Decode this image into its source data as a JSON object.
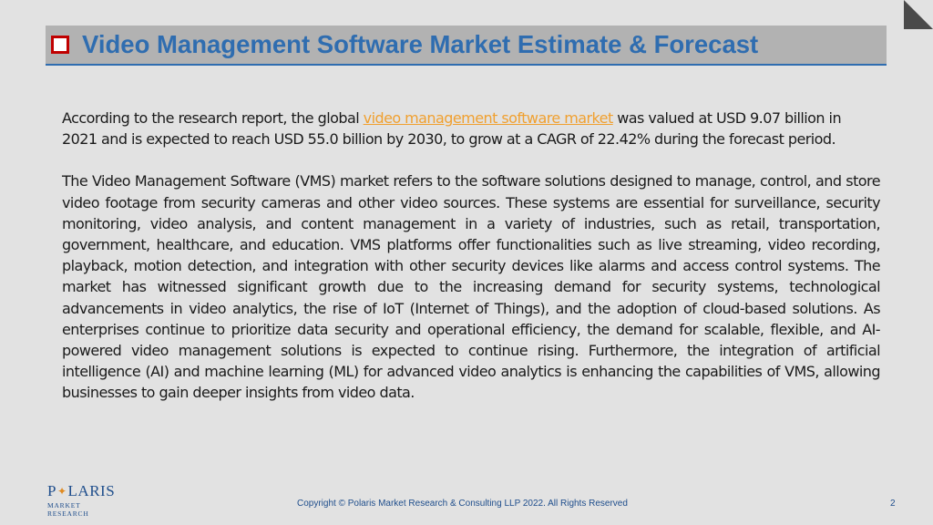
{
  "header": {
    "title": "Video Management Software Market Estimate & Forecast"
  },
  "colors": {
    "title": "#2f6db0",
    "bullet": "#c00000",
    "link": "#f0a030",
    "header_bg": "#b2b2b2",
    "background": "#e2e2e2"
  },
  "content": {
    "intro_before_link": "According to the research report, the global ",
    "intro_link": "video management software market",
    "intro_after_link": " was valued at USD 9.07 billion in 2021 and is expected to reach USD 55.0 billion by 2030, to grow at a CAGR of 22.42% during the forecast period.",
    "body": "The Video Management Software (VMS) market refers to the software solutions designed to manage, control, and store video footage from security cameras and other video sources. These systems are essential for surveillance, security monitoring, video analysis, and content management in a variety of industries, such as retail, transportation, government, healthcare, and education. VMS platforms offer functionalities such as live streaming, video recording, playback, motion detection, and integration with other security devices like alarms and access control systems. The market has witnessed significant growth due to the increasing demand for security systems, technological advancements in video analytics, the rise of IoT (Internet of Things), and the adoption of cloud-based solutions. As enterprises continue to prioritize data security and operational efficiency, the demand for scalable, flexible, and AI-powered video management solutions is expected to continue rising. Furthermore, the integration of artificial intelligence (AI) and machine learning (ML) for advanced video analytics is enhancing the capabilities of VMS, allowing businesses to gain deeper insights from video data."
  },
  "logo": {
    "name_part1": "P",
    "name_part2": "LARIS",
    "subtitle": "MARKET RESEARCH"
  },
  "footer": {
    "copyright": "Copyright © Polaris Market Research & Consulting LLP 2022. All Rights Reserved",
    "page_number": "2"
  }
}
